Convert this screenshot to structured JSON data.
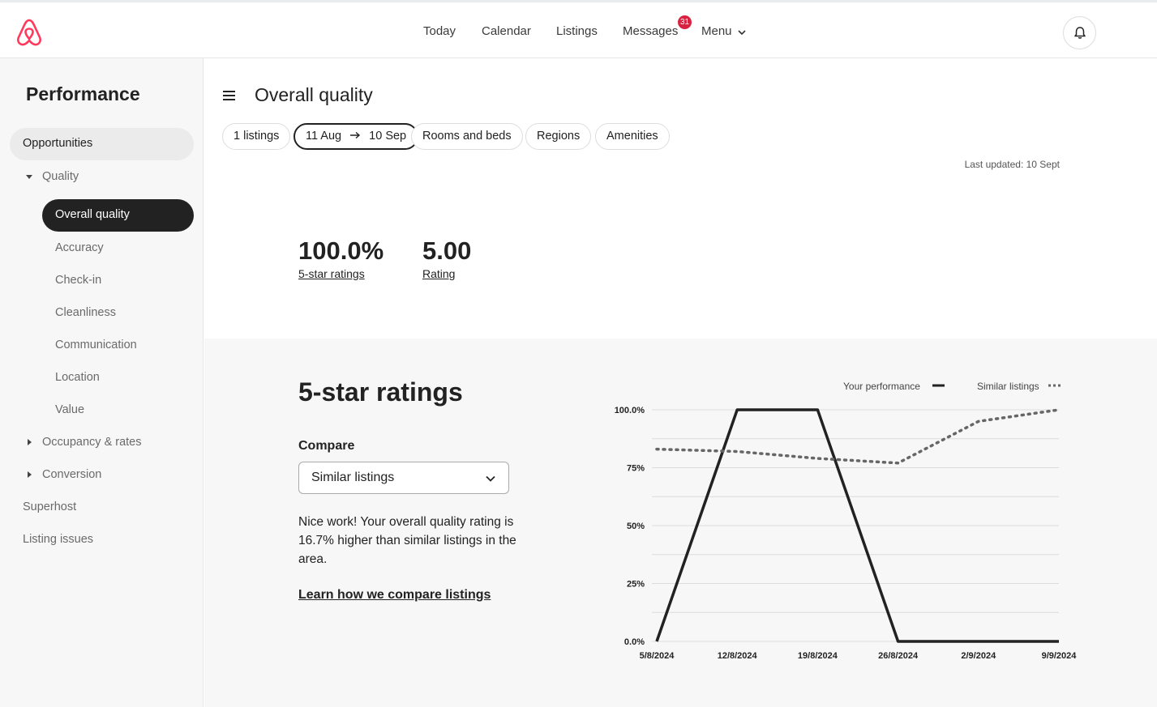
{
  "nav": {
    "items": [
      "Today",
      "Calendar",
      "Listings",
      "Messages",
      "Menu"
    ],
    "messages_badge": "31"
  },
  "sidebar": {
    "title": "Performance",
    "opportunities": "Opportunities",
    "quality": "Quality",
    "quality_items": [
      "Overall quality",
      "Accuracy",
      "Check-in",
      "Cleanliness",
      "Communication",
      "Location",
      "Value"
    ],
    "occupancy": "Occupancy & rates",
    "conversion": "Conversion",
    "superhost": "Superhost",
    "listing_issues": "Listing issues"
  },
  "main": {
    "title": "Overall quality",
    "filters": {
      "listings": "1 listings",
      "date_from": "11 Aug",
      "date_to": "10 Sep",
      "rooms": "Rooms and beds",
      "regions": "Regions",
      "amenities": "Amenities"
    },
    "last_updated": "Last updated: 10 Sept",
    "stats": [
      {
        "value": "100.0%",
        "label": "5-star ratings"
      },
      {
        "value": "5.00",
        "label": "Rating"
      }
    ]
  },
  "section": {
    "title": "5-star ratings",
    "compare_label": "Compare",
    "compare_selected": "Similar listings",
    "summary": "Nice work! Your overall quality rating is 16.7% higher than similar listings in the area.",
    "learn_link": "Learn how we compare listings"
  },
  "colors": {
    "badge": "#d9223f",
    "line": "#222222",
    "similar": "#666666"
  },
  "chart_data": {
    "type": "line",
    "x": [
      "5/8/2024",
      "12/8/2024",
      "19/8/2024",
      "26/8/2024",
      "2/9/2024",
      "9/9/2024"
    ],
    "y_ticks": [
      "0.0%",
      "25%",
      "50%",
      "75%",
      "100.0%"
    ],
    "ylim": [
      0,
      100
    ],
    "legend_position": "top-right",
    "grid": true,
    "series": [
      {
        "name": "Your performance",
        "style": "solid",
        "points": [
          [
            "5/8/2024",
            0
          ],
          [
            "12/8/2024",
            100
          ],
          [
            "19/8/2024",
            100
          ],
          [
            "26/8/2024",
            0
          ],
          [
            "2/9/2024",
            0
          ],
          [
            "9/9/2024",
            0
          ]
        ]
      },
      {
        "name": "Similar listings",
        "style": "dotted",
        "points": [
          [
            "5/8/2024",
            83
          ],
          [
            "12/8/2024",
            82
          ],
          [
            "19/8/2024",
            79
          ],
          [
            "26/8/2024",
            77
          ],
          [
            "2/9/2024",
            95
          ],
          [
            "9/9/2024",
            100
          ]
        ]
      }
    ]
  }
}
